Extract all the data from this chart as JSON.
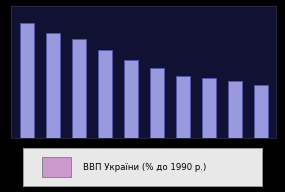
{
  "values": [
    100,
    91,
    86,
    77,
    68,
    61,
    54,
    52,
    50,
    46
  ],
  "bar_color": "#9999dd",
  "bar_edge_color": "#5555aa",
  "background_color": "#000000",
  "plot_bg_color": "#111133",
  "legend_label": "ВВП України (% до 1990 р.)",
  "legend_facecolor": "#cc99cc",
  "legend_box_bg": "#e8e8e8",
  "ylim": [
    0,
    115
  ],
  "bar_width": 0.55,
  "n_bars": 10
}
